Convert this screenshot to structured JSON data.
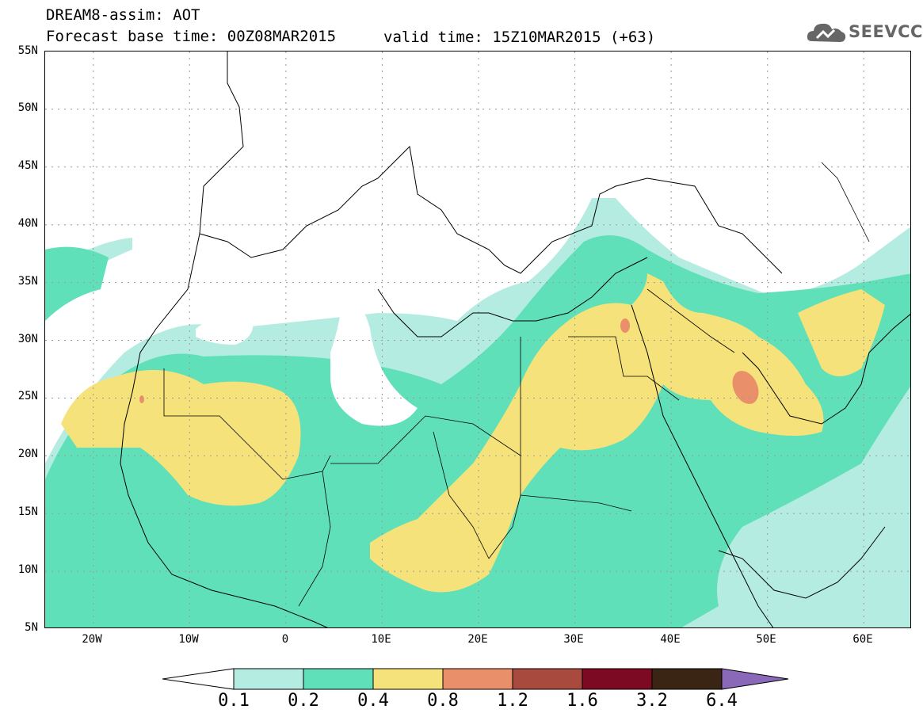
{
  "header": {
    "line1": "DREAM8-assim: AOT",
    "line2": "Forecast base time: 00Z08MAR2015",
    "line3": "valid time: 15Z10MAR2015 (+63)"
  },
  "logo": {
    "text": "SEEVCCC",
    "icon": "cloud-icon"
  },
  "map": {
    "lat_labels": [
      "55N",
      "50N",
      "45N",
      "40N",
      "35N",
      "30N",
      "25N",
      "20N",
      "15N",
      "10N",
      "5N"
    ],
    "lon_labels": [
      "20W",
      "10W",
      "0",
      "10E",
      "20E",
      "30E",
      "40E",
      "50E",
      "60E"
    ],
    "extent": {
      "lon": [
        -25,
        65
      ],
      "lat": [
        5,
        55
      ]
    }
  },
  "legend": {
    "levels": [
      "0.1",
      "0.2",
      "0.4",
      "0.8",
      "1.2",
      "1.6",
      "3.2",
      "6.4"
    ],
    "colors": [
      "#b5ece2",
      "#5fe0b8",
      "#f5e27a",
      "#e9906a",
      "#a84a3e",
      "#7c0a22",
      "#3a2514",
      "#8a6ab8"
    ]
  }
}
